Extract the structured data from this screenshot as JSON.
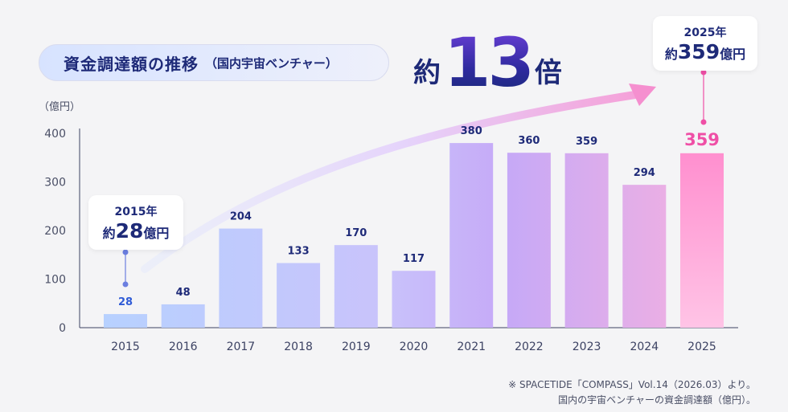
{
  "title": {
    "main": "資金調達額の推移",
    "sub": "（国内宇宙ベンチャー）"
  },
  "unit_label": "（億円）",
  "multiplier": {
    "prefix": "約",
    "number": "13",
    "suffix": "倍"
  },
  "callouts": {
    "start": {
      "year": "2015年",
      "prefix": "約",
      "value": "28",
      "unit": "億円"
    },
    "end": {
      "year": "2025年",
      "prefix": "約",
      "value": "359",
      "unit": "億円"
    }
  },
  "source": {
    "line1": "※ SPACETIDE「COMPASS」Vol.14（2026.03）より。",
    "line2": "国内の宇宙ベンチャーの資金調達額（億円）。"
  },
  "colors": {
    "navy": "#1e2a78",
    "blue_bar": "#a8c6ff",
    "purple_bar": "#c3a9f6",
    "pink_bar": "#f9a7d9",
    "highlight": "#ef4fa6",
    "start_label": "#2f5bd6"
  },
  "chart_data": {
    "type": "bar",
    "categories": [
      "2015",
      "2016",
      "2017",
      "2018",
      "2019",
      "2020",
      "2021",
      "2022",
      "2023",
      "2024",
      "2025"
    ],
    "values": [
      28,
      48,
      204,
      133,
      170,
      117,
      380,
      360,
      359,
      294,
      359
    ],
    "data_labels": [
      "28",
      "48",
      "204",
      "133",
      "170",
      "117",
      "380",
      "360",
      "359",
      "294",
      "359"
    ],
    "yticks": [
      "0",
      "100",
      "200",
      "300",
      "400"
    ],
    "ylim": [
      0,
      400
    ],
    "ylabel": "（億円）",
    "grid": false,
    "highlight_last": true
  }
}
